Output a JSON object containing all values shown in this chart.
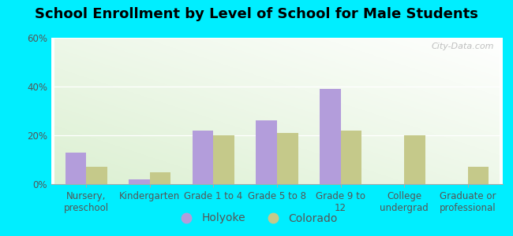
{
  "title": "School Enrollment by Level of School for Male Students",
  "categories": [
    "Nursery,\npreschool",
    "Kindergarten",
    "Grade 1 to 4",
    "Grade 5 to 8",
    "Grade 9 to\n12",
    "College\nundergrad",
    "Graduate or\nprofessional"
  ],
  "holyoke": [
    13,
    2,
    22,
    26,
    39,
    0,
    0
  ],
  "colorado": [
    7,
    5,
    20,
    21,
    22,
    20,
    7
  ],
  "holyoke_color": "#b39ddb",
  "colorado_color": "#c5c98a",
  "background_outer": "#00eeff",
  "ylim": [
    0,
    60
  ],
  "yticks": [
    0,
    20,
    40,
    60
  ],
  "ytick_labels": [
    "0%",
    "20%",
    "40%",
    "60%"
  ],
  "watermark": "City-Data.com",
  "legend_holyoke": "Holyoke",
  "legend_colorado": "Colorado",
  "title_fontsize": 13,
  "tick_fontsize": 8.5,
  "legend_fontsize": 10,
  "bar_width": 0.33
}
